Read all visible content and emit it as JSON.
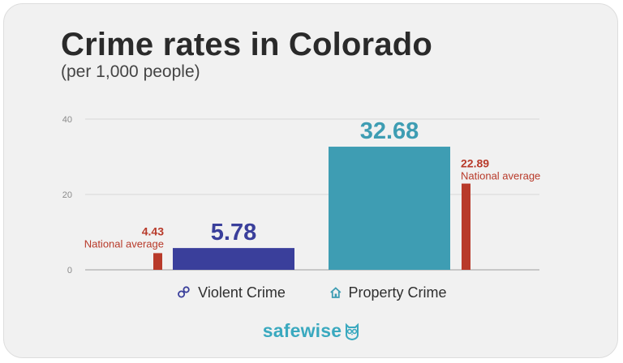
{
  "header": {
    "title": "Crime rates in Colorado",
    "subtitle": "(per 1,000 people)"
  },
  "brand": {
    "logo_text": "safewise",
    "logo_icon": "owl-icon"
  },
  "colors": {
    "violent": "#3a3f9b",
    "property": "#3e9db3",
    "national": "#b83a2a",
    "grid": "#d6d6d6"
  },
  "chart_data": {
    "type": "bar",
    "title": "Crime rates in Colorado",
    "subtitle": "(per 1,000 people)",
    "ylim": [
      0,
      40
    ],
    "yticks": [
      0,
      20,
      40
    ],
    "grid": true,
    "categories": [
      {
        "name": "Violent Crime",
        "icon": "handcuffs-icon",
        "value": 5.78,
        "national_average": 4.43,
        "national_side": "left"
      },
      {
        "name": "Property Crime",
        "icon": "house-icon",
        "value": 32.68,
        "national_average": 22.89,
        "national_side": "right"
      }
    ],
    "national_label": "National average"
  }
}
